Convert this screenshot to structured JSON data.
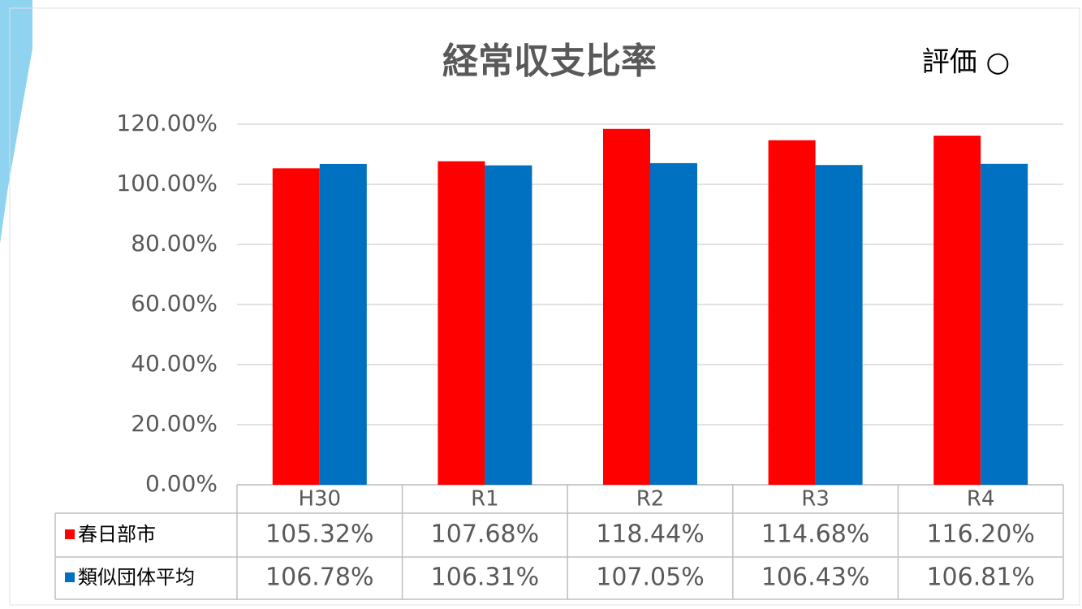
{
  "chart_data": {
    "type": "bar",
    "title": "経常収支比率",
    "annotation": "評価 ○",
    "categories": [
      "H30",
      "R1",
      "R2",
      "R3",
      "R4"
    ],
    "series": [
      {
        "name": "春日部市",
        "color": "#ff0000",
        "values": [
          105.32,
          107.68,
          118.44,
          114.68,
          116.2
        ],
        "value_labels": [
          "105.32%",
          "107.68%",
          "118.44%",
          "114.68%",
          "116.20%"
        ]
      },
      {
        "name": "類似団体平均",
        "color": "#0070c0",
        "values": [
          106.78,
          106.31,
          107.05,
          106.43,
          106.81
        ],
        "value_labels": [
          "106.78%",
          "106.31%",
          "107.05%",
          "106.43%",
          "106.81%"
        ]
      }
    ],
    "ylim": [
      0,
      120
    ],
    "yticks": [
      {
        "value": 0,
        "label": "0.00%"
      },
      {
        "value": 20,
        "label": "20.00%"
      },
      {
        "value": 40,
        "label": "40.00%"
      },
      {
        "value": 60,
        "label": "60.00%"
      },
      {
        "value": 80,
        "label": "80.00%"
      },
      {
        "value": 100,
        "label": "100.00%"
      },
      {
        "value": 120,
        "label": "120.00%"
      }
    ],
    "grid": true
  }
}
